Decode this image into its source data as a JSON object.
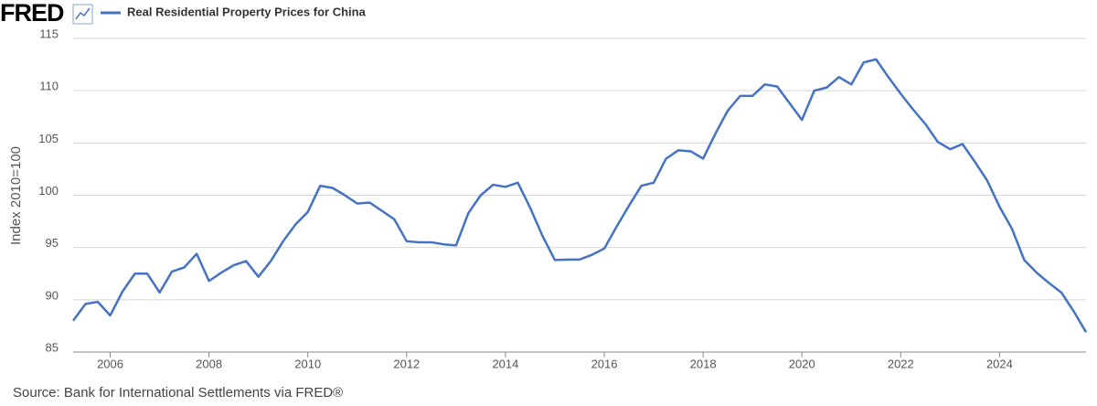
{
  "logo": "FRED",
  "chart_data": {
    "type": "line",
    "series": [
      {
        "name": "Real Residential Property Prices for China",
        "color": "#4472c4",
        "values": [
          88.0,
          89.6,
          89.8,
          88.5,
          90.8,
          92.5,
          92.5,
          90.7,
          92.7,
          93.1,
          94.4,
          91.8,
          92.6,
          93.3,
          93.7,
          92.2,
          93.7,
          95.6,
          97.2,
          98.4,
          100.9,
          100.7,
          100.0,
          99.2,
          99.3,
          98.5,
          97.7,
          95.6,
          95.5,
          95.5,
          95.3,
          95.2,
          98.3,
          100.0,
          101.0,
          100.8,
          101.2,
          98.8,
          96.1,
          93.8,
          93.85,
          93.85,
          94.3,
          94.9,
          97.0,
          99.0,
          100.9,
          101.2,
          103.5,
          104.3,
          104.2,
          103.5,
          105.9,
          108.1,
          109.5,
          109.5,
          110.6,
          110.4,
          108.8,
          107.2,
          110.0,
          110.3,
          111.3,
          110.6,
          112.7,
          113.0,
          111.3,
          109.7,
          108.2,
          106.8,
          105.1,
          104.4,
          104.9,
          103.2,
          101.4,
          98.9,
          96.8,
          93.8,
          92.6,
          91.6,
          90.7,
          88.9,
          86.9
        ]
      }
    ],
    "x": [
      2005.25,
      2005.5,
      2005.75,
      2006.0,
      2006.25,
      2006.5,
      2006.75,
      2007.0,
      2007.25,
      2007.5,
      2007.75,
      2008.0,
      2008.25,
      2008.5,
      2008.75,
      2009.0,
      2009.25,
      2009.5,
      2009.75,
      2010.0,
      2010.25,
      2010.5,
      2010.75,
      2011.0,
      2011.25,
      2011.5,
      2011.75,
      2012.0,
      2012.25,
      2012.5,
      2012.75,
      2013.0,
      2013.25,
      2013.5,
      2013.75,
      2014.0,
      2014.25,
      2014.5,
      2014.75,
      2015.0,
      2015.25,
      2015.5,
      2015.75,
      2016.0,
      2016.25,
      2016.5,
      2016.75,
      2017.0,
      2017.25,
      2017.5,
      2017.75,
      2018.0,
      2018.25,
      2018.5,
      2018.75,
      2019.0,
      2019.25,
      2019.5,
      2019.75,
      2020.0,
      2020.25,
      2020.5,
      2020.75,
      2021.0,
      2021.25,
      2021.5,
      2021.75,
      2022.0,
      2022.25,
      2022.5,
      2022.75,
      2023.0,
      2023.25,
      2023.5,
      2023.75,
      2024.0,
      2024.25,
      2024.5,
      2024.75,
      2025.0,
      2025.25,
      2025.5,
      2025.75
    ],
    "xlim": [
      2005.25,
      2025.75
    ],
    "xticks": [
      2006,
      2008,
      2010,
      2012,
      2014,
      2016,
      2018,
      2020,
      2022,
      2024
    ],
    "ylim": [
      85,
      115
    ],
    "yticks": [
      85,
      90,
      95,
      100,
      105,
      110,
      115
    ],
    "y_label": "Index 2010=100",
    "grid": true,
    "source": "Source: Bank for International Settlements via FRED®"
  }
}
